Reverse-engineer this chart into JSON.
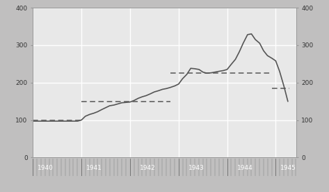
{
  "xlim": [
    1940.0,
    1945.42
  ],
  "ylim": [
    0,
    400
  ],
  "outer_bg": "#c0bfbf",
  "plot_bg_color": "#e8e8e8",
  "grid_color": "#ffffff",
  "line_color": "#555555",
  "dashed_color": "#555555",
  "bottom_bar_color": "#222222",
  "solid_line_x": [
    1940.0,
    1940.08,
    1940.17,
    1940.25,
    1940.33,
    1940.42,
    1940.5,
    1940.58,
    1940.67,
    1940.75,
    1940.83,
    1940.92,
    1941.0,
    1941.08,
    1941.17,
    1941.25,
    1941.33,
    1941.42,
    1941.5,
    1941.58,
    1941.67,
    1941.75,
    1941.83,
    1941.92,
    1942.0,
    1942.08,
    1942.17,
    1942.25,
    1942.33,
    1942.42,
    1942.5,
    1942.58,
    1942.67,
    1942.75,
    1942.83,
    1942.92,
    1943.0,
    1943.08,
    1943.17,
    1943.25,
    1943.33,
    1943.42,
    1943.5,
    1943.58,
    1943.67,
    1943.75,
    1943.83,
    1943.92,
    1944.0,
    1944.08,
    1944.17,
    1944.25,
    1944.33,
    1944.42,
    1944.5,
    1944.58,
    1944.67,
    1944.75,
    1944.83,
    1944.92,
    1945.0,
    1945.08,
    1945.17,
    1945.25
  ],
  "solid_line_y": [
    97,
    97,
    97,
    97,
    97,
    97,
    97,
    97,
    97,
    97,
    97,
    97,
    100,
    110,
    115,
    118,
    122,
    128,
    133,
    138,
    140,
    143,
    146,
    147,
    148,
    152,
    158,
    162,
    165,
    170,
    175,
    178,
    182,
    184,
    187,
    191,
    196,
    210,
    222,
    238,
    237,
    235,
    228,
    225,
    226,
    228,
    230,
    232,
    235,
    248,
    262,
    282,
    305,
    328,
    330,
    315,
    305,
    285,
    272,
    265,
    258,
    230,
    190,
    150
  ],
  "dashed_segments": [
    {
      "x": [
        1940.0,
        1941.0
      ],
      "y": [
        100,
        100
      ]
    },
    {
      "x": [
        1941.0,
        1942.83
      ],
      "y": [
        150,
        150
      ]
    },
    {
      "x": [
        1942.83,
        1944.92
      ],
      "y": [
        225,
        225
      ]
    },
    {
      "x": [
        1944.92,
        1945.28
      ],
      "y": [
        185,
        185
      ]
    }
  ],
  "yticks": [
    0,
    100,
    200,
    300,
    400
  ],
  "xtick_positions": [
    1940,
    1941,
    1942,
    1943,
    1944,
    1945
  ],
  "tick_label_fontsize": 6.5,
  "spine_color": "#999999"
}
